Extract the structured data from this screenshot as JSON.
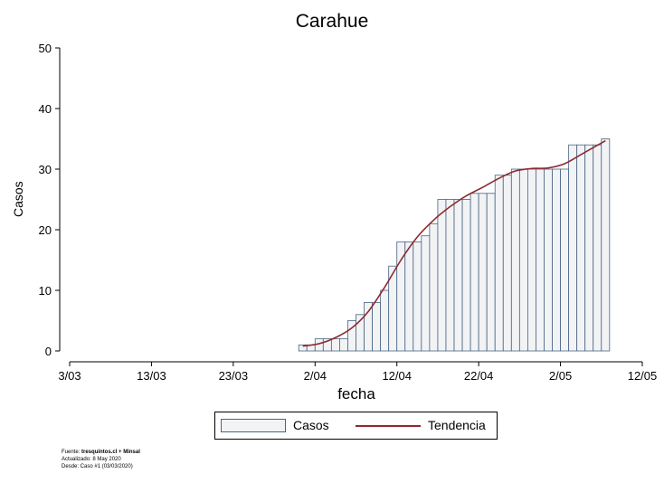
{
  "chart_data": {
    "type": "bar",
    "title": "Carahue",
    "xlabel": "fecha",
    "ylabel": "Casos",
    "ylim": [
      0,
      50
    ],
    "y_ticks": [
      "0",
      "10",
      "20",
      "30",
      "40",
      "50"
    ],
    "x_ticks": [
      "3/03",
      "13/03",
      "23/03",
      "2/04",
      "12/04",
      "22/04",
      "2/05",
      "12/05"
    ],
    "xlim": [
      "2020-03-03",
      "2020-05-12"
    ],
    "series": [
      {
        "name": "Casos",
        "type": "bar",
        "color": "#f2f3f5",
        "edge_color": "#4a6381",
        "dates": [
          "2020-03-31",
          "2020-04-01",
          "2020-04-02",
          "2020-04-03",
          "2020-04-04",
          "2020-04-05",
          "2020-04-06",
          "2020-04-07",
          "2020-04-08",
          "2020-04-09",
          "2020-04-10",
          "2020-04-11",
          "2020-04-12",
          "2020-04-13",
          "2020-04-14",
          "2020-04-15",
          "2020-04-16",
          "2020-04-17",
          "2020-04-18",
          "2020-04-19",
          "2020-04-20",
          "2020-04-21",
          "2020-04-22",
          "2020-04-23",
          "2020-04-24",
          "2020-04-25",
          "2020-04-26",
          "2020-04-27",
          "2020-04-28",
          "2020-04-29",
          "2020-04-30",
          "2020-05-01",
          "2020-05-02",
          "2020-05-03",
          "2020-05-04",
          "2020-05-05",
          "2020-05-06",
          "2020-05-07"
        ],
        "values": [
          1,
          1,
          2,
          2,
          2,
          2,
          5,
          6,
          8,
          8,
          10,
          14,
          18,
          18,
          18,
          19,
          21,
          25,
          25,
          25,
          25,
          26,
          26,
          26,
          29,
          29,
          30,
          30,
          30,
          30,
          30,
          30,
          30,
          34,
          34,
          34,
          34,
          35
        ]
      },
      {
        "name": "Tendencia",
        "type": "line",
        "color": "#8c2a30",
        "dates": [
          "2020-03-31",
          "2020-04-02",
          "2020-04-04",
          "2020-04-06",
          "2020-04-08",
          "2020-04-10",
          "2020-04-12",
          "2020-04-14",
          "2020-04-16",
          "2020-04-18",
          "2020-04-20",
          "2020-04-22",
          "2020-04-24",
          "2020-04-26",
          "2020-04-28",
          "2020-04-30",
          "2020-05-02",
          "2020-05-04",
          "2020-05-07"
        ],
        "values": [
          0.8,
          1.2,
          2.2,
          3.8,
          6.5,
          10.5,
          15.0,
          18.8,
          21.6,
          23.8,
          25.6,
          27.0,
          28.5,
          29.7,
          30.1,
          30.2,
          30.9,
          32.4,
          34.7
        ]
      }
    ],
    "legend": {
      "position": "bottom",
      "items": [
        "Casos",
        "Tendencia"
      ]
    }
  },
  "footer": {
    "source_label": "Fuente: ",
    "source": "tresquintos.cl + Minsal",
    "updated": "Actualizado: 8 May 2020",
    "since": "Desde: Caso #1  (03/03/2020)"
  }
}
